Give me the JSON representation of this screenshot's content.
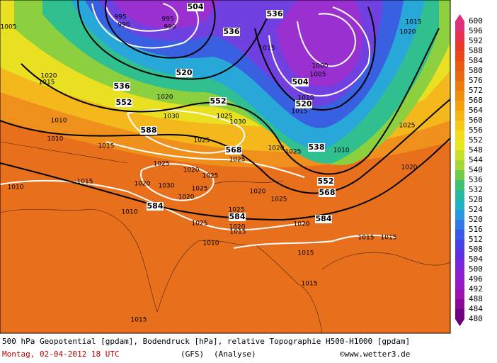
{
  "colorbar": {
    "labels": [
      600,
      596,
      592,
      588,
      584,
      580,
      576,
      572,
      568,
      564,
      560,
      556,
      552,
      548,
      544,
      540,
      536,
      532,
      528,
      524,
      520,
      516,
      512,
      508,
      504,
      500,
      496,
      492,
      488,
      484,
      480
    ]
  },
  "contour_labels": {
    "geopotential": [
      504,
      536,
      536,
      520,
      536,
      552,
      552,
      504,
      520,
      588,
      568,
      538,
      552,
      568,
      584,
      584,
      584
    ],
    "pressure": [
      995,
      990,
      995,
      990,
      1005,
      1015,
      1000,
      1005,
      1010,
      1015,
      1030,
      1025,
      1030,
      1025,
      1020,
      1025,
      1010,
      1015,
      1010,
      1010,
      1025,
      1020,
      1025,
      1030,
      1020,
      1025,
      1020,
      1020,
      1025,
      1015,
      1010,
      1010,
      1025,
      1020,
      1015,
      1025,
      1020,
      1010,
      1015,
      1015,
      1015,
      1015,
      1015,
      1020,
      1025,
      1015,
      1020,
      1020,
      1015,
      1020,
      1025
    ]
  },
  "footer": {
    "description": "500 hPa Geopotential [gpdam], Bodendruck [hPa], relative Topographie H500-H1000 [gpdam]",
    "date": "Montag, 02-04-2012  18 UTC",
    "model": "(GFS)",
    "analysis": "(Analyse)",
    "copyright": "©www.wetter3.de"
  }
}
